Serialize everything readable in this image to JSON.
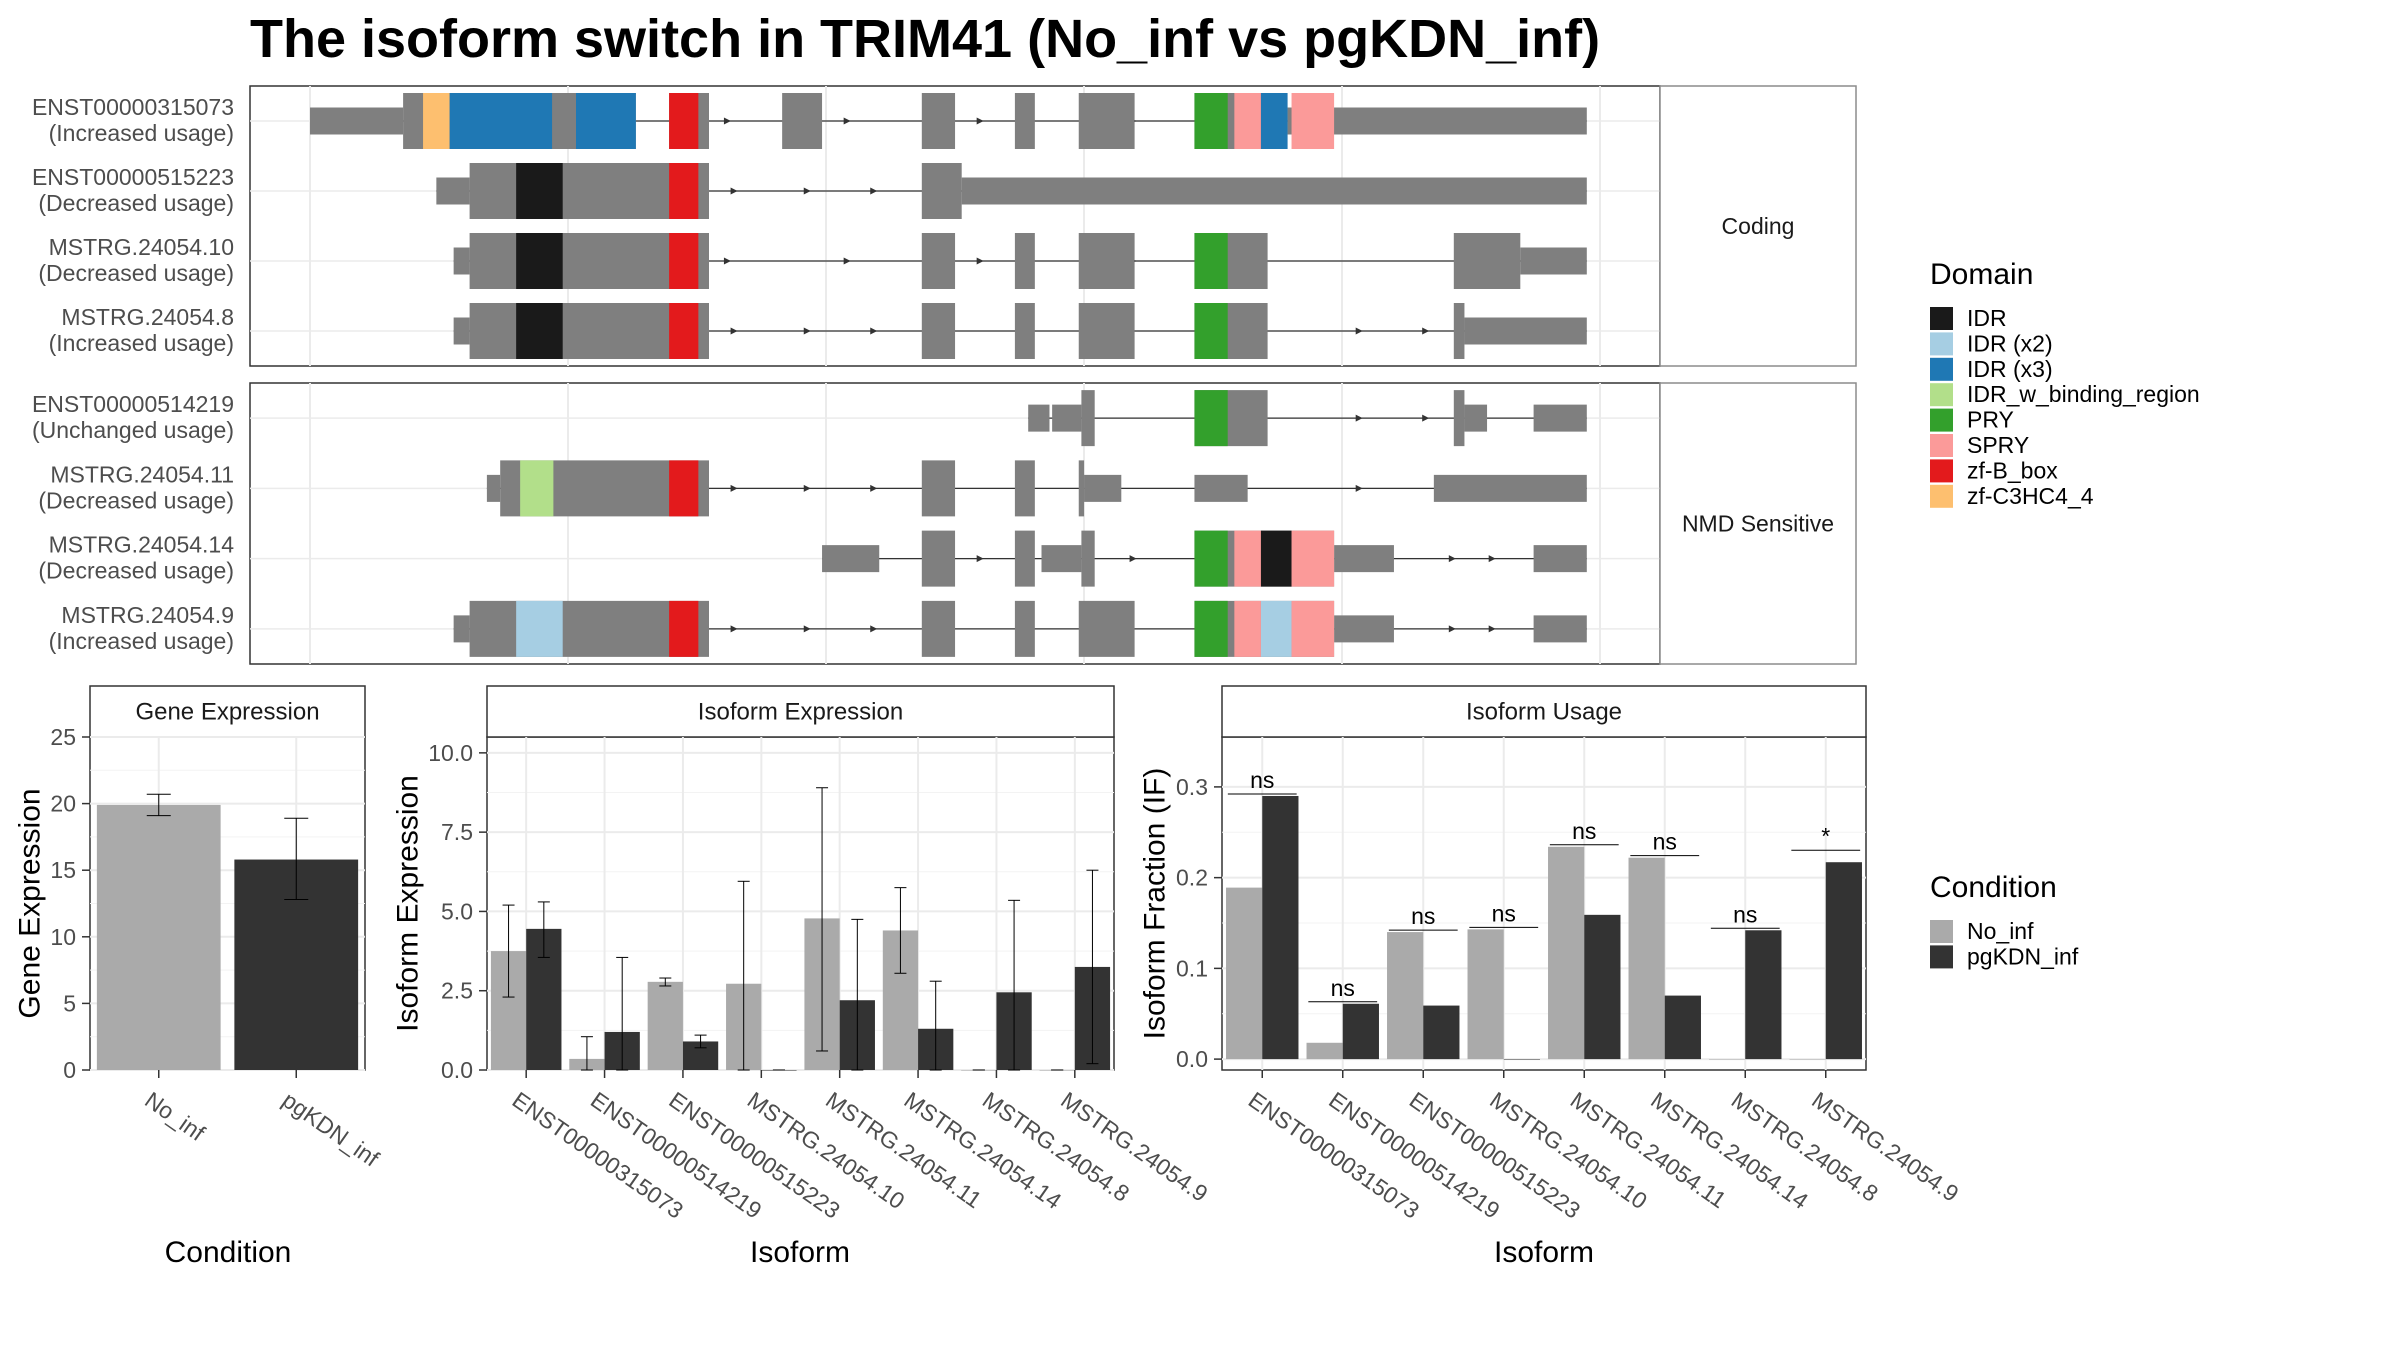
{
  "title": "The isoform switch in TRIM41 (No_inf vs pgKDN_inf)",
  "colors": {
    "gray": "#7f7f7f",
    "No_inf": "#aaaaaa",
    "pgKDN_inf": "#333333",
    "IDR": "#1a1a1a",
    "IDR (x2)": "#a6cee3",
    "IDR (x3)": "#1f78b4",
    "IDR_w_binding_region": "#b2df8a",
    "PRY": "#33a02c",
    "SPRY": "#fb9a99",
    "zf-B_box": "#e31a1c",
    "zf-C3HC4_4": "#fdbf6f"
  },
  "structure": {
    "groups": [
      "Coding",
      "NMD Sensitive"
    ],
    "isoforms": [
      {
        "name": "ENST00000315073",
        "usage": "(Increased usage)",
        "group": "Coding",
        "segments": [
          {
            "s": 0,
            "e": 70,
            "h": "s"
          },
          {
            "s": 70,
            "e": 245,
            "h": "b"
          },
          {
            "s": 270,
            "e": 300,
            "h": "b"
          },
          {
            "s": 355,
            "e": 385,
            "h": "b"
          },
          {
            "s": 460,
            "e": 485,
            "h": "b"
          },
          {
            "s": 530,
            "e": 545,
            "h": "b"
          },
          {
            "s": 578,
            "e": 620,
            "h": "b"
          },
          {
            "s": 665,
            "e": 720,
            "h": "b"
          },
          {
            "s": 720,
            "e": 735,
            "h": "b"
          },
          {
            "s": 735,
            "e": 960,
            "h": "s"
          }
        ],
        "domains": [
          {
            "s": 85,
            "e": 105,
            "d": "zf-C3HC4_4"
          },
          {
            "s": 105,
            "e": 182,
            "d": "IDR (x3)"
          },
          {
            "s": 200,
            "e": 245,
            "d": "IDR (x3)"
          },
          {
            "s": 270,
            "e": 292,
            "d": "zf-B_box"
          },
          {
            "s": 665,
            "e": 690,
            "d": "PRY"
          },
          {
            "s": 695,
            "e": 715,
            "d": "SPRY"
          },
          {
            "s": 715,
            "e": 735,
            "d": "IDR (x3)"
          },
          {
            "s": 738,
            "e": 770,
            "d": "SPRY"
          }
        ],
        "arrows": [
          315,
          405,
          505,
          620
        ]
      },
      {
        "name": "ENST00000515223",
        "usage": "(Decreased usage)",
        "group": "Coding",
        "segments": [
          {
            "s": 95,
            "e": 120,
            "h": "s"
          },
          {
            "s": 120,
            "e": 300,
            "h": "b"
          },
          {
            "s": 460,
            "e": 490,
            "h": "b"
          },
          {
            "s": 490,
            "e": 960,
            "h": "s"
          }
        ],
        "domains": [
          {
            "s": 155,
            "e": 190,
            "d": "IDR"
          },
          {
            "s": 270,
            "e": 292,
            "d": "zf-B_box"
          }
        ],
        "arrows": [
          320,
          375,
          425
        ]
      },
      {
        "name": "MSTRG.24054.10",
        "usage": "(Decreased usage)",
        "group": "Coding",
        "segments": [
          {
            "s": 108,
            "e": 120,
            "h": "s"
          },
          {
            "s": 120,
            "e": 300,
            "h": "b"
          },
          {
            "s": 460,
            "e": 485,
            "h": "b"
          },
          {
            "s": 530,
            "e": 545,
            "h": "b"
          },
          {
            "s": 578,
            "e": 620,
            "h": "b"
          },
          {
            "s": 665,
            "e": 720,
            "h": "b"
          },
          {
            "s": 860,
            "e": 910,
            "h": "b"
          },
          {
            "s": 910,
            "e": 960,
            "h": "s"
          }
        ],
        "domains": [
          {
            "s": 155,
            "e": 190,
            "d": "IDR"
          },
          {
            "s": 270,
            "e": 292,
            "d": "zf-B_box"
          },
          {
            "s": 665,
            "e": 690,
            "d": "PRY"
          }
        ],
        "arrows": [
          315,
          405,
          505,
          620
        ]
      },
      {
        "name": "MSTRG.24054.8",
        "usage": "(Increased usage)",
        "group": "Coding",
        "segments": [
          {
            "s": 108,
            "e": 120,
            "h": "s"
          },
          {
            "s": 120,
            "e": 300,
            "h": "b"
          },
          {
            "s": 460,
            "e": 485,
            "h": "b"
          },
          {
            "s": 530,
            "e": 545,
            "h": "b"
          },
          {
            "s": 578,
            "e": 620,
            "h": "b"
          },
          {
            "s": 665,
            "e": 720,
            "h": "b"
          },
          {
            "s": 860,
            "e": 868,
            "h": "b"
          },
          {
            "s": 868,
            "e": 960,
            "h": "s"
          }
        ],
        "domains": [
          {
            "s": 155,
            "e": 190,
            "d": "IDR"
          },
          {
            "s": 270,
            "e": 292,
            "d": "zf-B_box"
          },
          {
            "s": 665,
            "e": 690,
            "d": "PRY"
          }
        ],
        "arrows": [
          320,
          375,
          425,
          790,
          840
        ]
      },
      {
        "name": "ENST00000514219",
        "usage": "(Unchanged usage)",
        "group": "NMD Sensitive",
        "segments": [
          {
            "s": 540,
            "e": 556,
            "h": "s"
          },
          {
            "s": 558,
            "e": 580,
            "h": "s"
          },
          {
            "s": 580,
            "e": 590,
            "h": "b"
          },
          {
            "s": 665,
            "e": 720,
            "h": "b"
          },
          {
            "s": 860,
            "e": 868,
            "h": "b"
          },
          {
            "s": 868,
            "e": 885,
            "h": "s"
          },
          {
            "s": 920,
            "e": 960,
            "h": "s"
          }
        ],
        "domains": [
          {
            "s": 665,
            "e": 690,
            "d": "PRY"
          }
        ],
        "arrows": [
          790,
          840
        ]
      },
      {
        "name": "MSTRG.24054.11",
        "usage": "(Decreased usage)",
        "group": "NMD Sensitive",
        "segments": [
          {
            "s": 133,
            "e": 143,
            "h": "s"
          },
          {
            "s": 143,
            "e": 300,
            "h": "b"
          },
          {
            "s": 460,
            "e": 485,
            "h": "b"
          },
          {
            "s": 530,
            "e": 545,
            "h": "b"
          },
          {
            "s": 578,
            "e": 582,
            "h": "b"
          },
          {
            "s": 582,
            "e": 610,
            "h": "s"
          },
          {
            "s": 665,
            "e": 705,
            "h": "s"
          },
          {
            "s": 845,
            "e": 960,
            "h": "s"
          }
        ],
        "domains": [
          {
            "s": 158,
            "e": 183,
            "d": "IDR_w_binding_region"
          },
          {
            "s": 270,
            "e": 292,
            "d": "zf-B_box"
          }
        ],
        "arrows": [
          320,
          375,
          425,
          790
        ]
      },
      {
        "name": "MSTRG.24054.14",
        "usage": "(Decreased usage)",
        "group": "NMD Sensitive",
        "segments": [
          {
            "s": 385,
            "e": 428,
            "h": "s"
          },
          {
            "s": 460,
            "e": 485,
            "h": "b"
          },
          {
            "s": 530,
            "e": 545,
            "h": "b"
          },
          {
            "s": 550,
            "e": 580,
            "h": "s"
          },
          {
            "s": 580,
            "e": 590,
            "h": "b"
          },
          {
            "s": 665,
            "e": 770,
            "h": "b"
          },
          {
            "s": 770,
            "e": 815,
            "h": "s"
          },
          {
            "s": 920,
            "e": 960,
            "h": "s"
          }
        ],
        "domains": [
          {
            "s": 665,
            "e": 690,
            "d": "PRY"
          },
          {
            "s": 695,
            "e": 715,
            "d": "SPRY"
          },
          {
            "s": 715,
            "e": 738,
            "d": "IDR"
          },
          {
            "s": 738,
            "e": 770,
            "d": "SPRY"
          }
        ],
        "arrows": [
          505,
          620,
          860,
          890
        ]
      },
      {
        "name": "MSTRG.24054.9",
        "usage": "(Increased usage)",
        "group": "NMD Sensitive",
        "segments": [
          {
            "s": 108,
            "e": 120,
            "h": "s"
          },
          {
            "s": 120,
            "e": 300,
            "h": "b"
          },
          {
            "s": 460,
            "e": 485,
            "h": "b"
          },
          {
            "s": 530,
            "e": 545,
            "h": "b"
          },
          {
            "s": 578,
            "e": 620,
            "h": "b"
          },
          {
            "s": 665,
            "e": 770,
            "h": "b"
          },
          {
            "s": 770,
            "e": 815,
            "h": "s"
          },
          {
            "s": 920,
            "e": 960,
            "h": "s"
          }
        ],
        "domains": [
          {
            "s": 155,
            "e": 190,
            "d": "IDR (x2)"
          },
          {
            "s": 270,
            "e": 292,
            "d": "zf-B_box"
          },
          {
            "s": 665,
            "e": 690,
            "d": "PRY"
          },
          {
            "s": 695,
            "e": 715,
            "d": "SPRY"
          },
          {
            "s": 715,
            "e": 738,
            "d": "IDR (x2)"
          },
          {
            "s": 738,
            "e": 770,
            "d": "SPRY"
          }
        ],
        "arrows": [
          320,
          375,
          425,
          860,
          890
        ]
      }
    ]
  },
  "legend_domain": {
    "title": "Domain",
    "items": [
      "IDR",
      "IDR (x2)",
      "IDR (x3)",
      "IDR_w_binding_region",
      "PRY",
      "SPRY",
      "zf-B_box",
      "zf-C3HC4_4"
    ]
  },
  "legend_condition": {
    "title": "Condition",
    "items": [
      "No_inf",
      "pgKDN_inf"
    ]
  },
  "chart_data": [
    {
      "type": "bar",
      "title": "Gene Expression",
      "xlabel": "Condition",
      "ylabel": "Gene Expression",
      "ylim": [
        0,
        25
      ],
      "yticks": [
        0,
        5,
        10,
        15,
        20,
        25
      ],
      "categories": [
        "No_inf",
        "pgKDN_inf"
      ],
      "values": [
        19.9,
        15.8
      ],
      "errors": [
        [
          19.1,
          20.7
        ],
        [
          12.8,
          18.9
        ]
      ]
    },
    {
      "type": "bar",
      "title": "Isoform Expression",
      "xlabel": "Isoform",
      "ylabel": "Isoform Expression",
      "ylim": [
        0,
        10.5
      ],
      "yticks": [
        "0.0",
        "2.5",
        "5.0",
        "7.5",
        "10.0"
      ],
      "categories": [
        "ENST00000315073",
        "ENST00000514219",
        "ENST00000515223",
        "MSTRG.24054.10",
        "MSTRG.24054.11",
        "MSTRG.24054.14",
        "MSTRG.24054.8",
        "MSTRG.24054.9"
      ],
      "series": [
        {
          "name": "No_inf",
          "values": [
            3.75,
            0.35,
            2.78,
            2.72,
            4.78,
            4.4,
            0,
            0
          ],
          "errors": [
            [
              2.3,
              5.2
            ],
            [
              0,
              1.05
            ],
            [
              2.65,
              2.9
            ],
            [
              0,
              5.95
            ],
            [
              0.6,
              8.9
            ],
            [
              3.05,
              5.75
            ],
            [
              0,
              0
            ],
            [
              0,
              0
            ]
          ]
        },
        {
          "name": "pgKDN_inf",
          "values": [
            4.45,
            1.2,
            0.9,
            0,
            2.2,
            1.3,
            2.45,
            3.25
          ],
          "errors": [
            [
              3.55,
              5.3
            ],
            [
              0,
              3.55
            ],
            [
              0.7,
              1.1
            ],
            [
              0,
              0
            ],
            [
              0,
              4.75
            ],
            [
              0,
              2.8
            ],
            [
              0,
              5.35
            ],
            [
              0.2,
              6.3
            ]
          ]
        }
      ]
    },
    {
      "type": "bar",
      "title": "Isoform Usage",
      "xlabel": "Isoform",
      "ylabel": "Isoform Fraction (IF)",
      "ylim": [
        -0.012,
        0.355
      ],
      "yticks": [
        "0.0",
        "0.1",
        "0.2",
        "0.3"
      ],
      "categories": [
        "ENST00000315073",
        "ENST00000514219",
        "ENST00000515223",
        "MSTRG.24054.10",
        "MSTRG.24054.11",
        "MSTRG.24054.14",
        "MSTRG.24054.8",
        "MSTRG.24054.9"
      ],
      "series": [
        {
          "name": "No_inf",
          "values": [
            0.189,
            0.018,
            0.14,
            0.143,
            0.234,
            0.222,
            0,
            0
          ]
        },
        {
          "name": "pgKDN_inf",
          "values": [
            0.29,
            0.061,
            0.059,
            0,
            0.159,
            0.07,
            0.142,
            0.217
          ]
        }
      ],
      "significance": [
        "ns",
        "ns",
        "ns",
        "ns",
        "ns",
        "ns",
        "ns",
        "*"
      ]
    }
  ]
}
